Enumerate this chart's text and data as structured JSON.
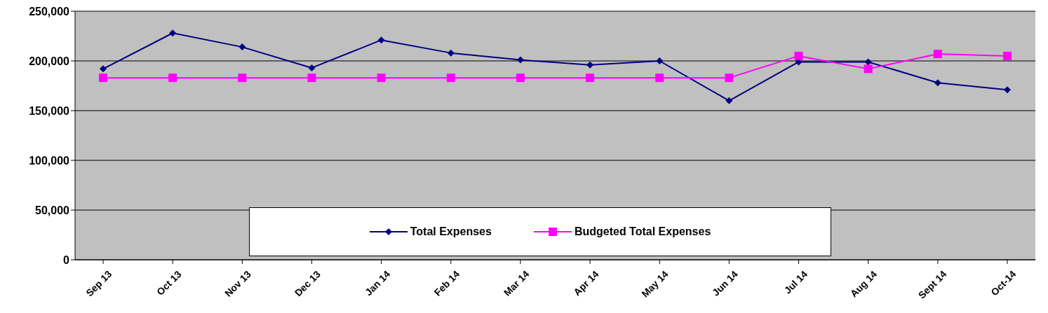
{
  "chart_data": {
    "type": "line",
    "categories": [
      "Sep 13",
      "Oct 13",
      "Nov 13",
      "Dec 13",
      "Jan 14",
      "Feb 14",
      "Mar 14",
      "Apr 14",
      "May 14",
      "Jun 14",
      "Jul 14",
      "Aug 14",
      "Sept 14",
      "Oct-14"
    ],
    "series": [
      {
        "name": "Total Expenses",
        "color": "#000080",
        "marker": "diamond",
        "values": [
          192000,
          228000,
          214000,
          193000,
          221000,
          208000,
          201000,
          196000,
          200000,
          160000,
          199000,
          199000,
          178000,
          171000
        ]
      },
      {
        "name": "Budgeted Total Expenses",
        "color": "#ff00ff",
        "marker": "square",
        "values": [
          183000,
          183000,
          183000,
          183000,
          183000,
          183000,
          183000,
          183000,
          183000,
          183000,
          205000,
          192000,
          207000,
          205000
        ]
      }
    ],
    "ylim": [
      0,
      250000
    ],
    "yticks": [
      {
        "value": 0,
        "label": "0"
      },
      {
        "value": 50000,
        "label": "50,000"
      },
      {
        "value": 100000,
        "label": "100,000"
      },
      {
        "value": 150000,
        "label": "150,000"
      },
      {
        "value": 200000,
        "label": "200,000"
      },
      {
        "value": 250000,
        "label": "250,000"
      }
    ],
    "grid": "y",
    "legend": "bottom",
    "line_style": "solid"
  }
}
